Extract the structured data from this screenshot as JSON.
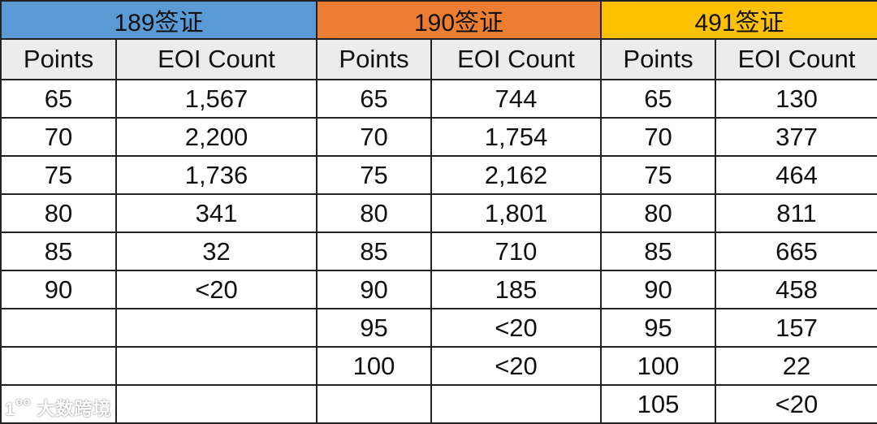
{
  "visas": [
    {
      "title": "189签证",
      "color": "#5b9bd5",
      "rows": [
        [
          "65",
          "1,567"
        ],
        [
          "70",
          "2,200"
        ],
        [
          "75",
          "1,736"
        ],
        [
          "80",
          "341"
        ],
        [
          "85",
          "32"
        ],
        [
          "90",
          "<20"
        ],
        [
          "",
          ""
        ],
        [
          "",
          ""
        ],
        [
          "",
          ""
        ]
      ]
    },
    {
      "title": "190签证",
      "color": "#ed7d31",
      "rows": [
        [
          "65",
          "744"
        ],
        [
          "70",
          "1,754"
        ],
        [
          "75",
          "2,162"
        ],
        [
          "80",
          "1,801"
        ],
        [
          "85",
          "710"
        ],
        [
          "90",
          "185"
        ],
        [
          "95",
          "<20"
        ],
        [
          "100",
          "<20"
        ],
        [
          "",
          ""
        ]
      ]
    },
    {
      "title": "491签证",
      "color": "#ffc000",
      "rows": [
        [
          "65",
          "130"
        ],
        [
          "70",
          "377"
        ],
        [
          "75",
          "464"
        ],
        [
          "80",
          "811"
        ],
        [
          "85",
          "665"
        ],
        [
          "90",
          "458"
        ],
        [
          "95",
          "157"
        ],
        [
          "100",
          "22"
        ],
        [
          "105",
          "<20"
        ]
      ]
    }
  ],
  "columns": {
    "points": "Points",
    "eoi": "EOI Count"
  },
  "watermark": "大数跨境"
}
